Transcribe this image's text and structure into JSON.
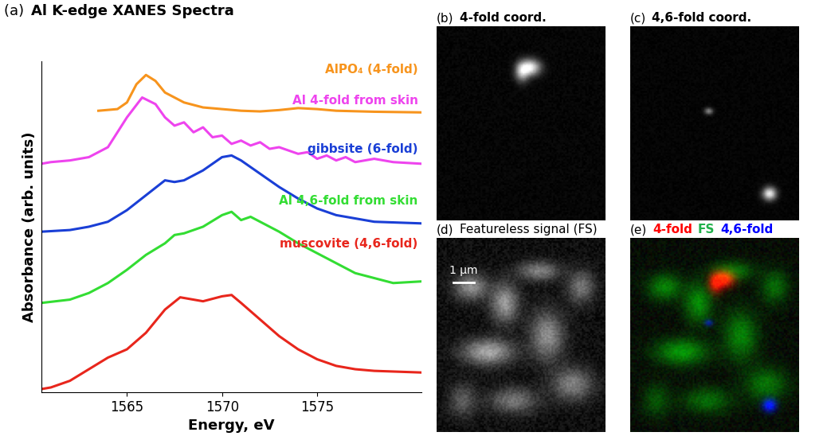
{
  "chart_data": {
    "type": "line",
    "label": "(a)",
    "title": "Al K-edge XANES Spectra",
    "x_label": "Energy, eV",
    "y_label": "Absorbance (arb. units)",
    "xlim": [
      1560.5,
      1580.5
    ],
    "ylim": [
      0,
      10
    ],
    "xticks": [
      1565,
      1570,
      1575
    ],
    "tick_labels": "x",
    "series": [
      {
        "name": "AlPO₄ (4-fold)",
        "color": "#f7941d",
        "x": [
          1563.5,
          1564.5,
          1565,
          1565.5,
          1566,
          1566.5,
          1567,
          1567.5,
          1568,
          1569,
          1570,
          1571,
          1572,
          1573,
          1574,
          1575,
          1576,
          1578,
          1580.5
        ],
        "values": [
          8.5,
          8.55,
          8.75,
          9.3,
          9.58,
          9.4,
          9.05,
          8.9,
          8.75,
          8.6,
          8.55,
          8.5,
          8.48,
          8.52,
          8.58,
          8.55,
          8.5,
          8.47,
          8.45
        ]
      },
      {
        "name": "Al 4-fold from skin",
        "color": "#ee44ee",
        "x": [
          1560.5,
          1561,
          1562,
          1563,
          1564,
          1565,
          1565.8,
          1566.5,
          1567,
          1567.5,
          1568,
          1568.5,
          1569,
          1569.5,
          1570,
          1570.5,
          1571,
          1571.5,
          1572,
          1572.5,
          1573,
          1574,
          1574.5,
          1575,
          1575.5,
          1576,
          1576.5,
          1577,
          1578,
          1579,
          1580.5
        ],
        "values": [
          6.9,
          6.95,
          7.0,
          7.1,
          7.4,
          8.3,
          8.9,
          8.7,
          8.3,
          8.05,
          8.15,
          7.85,
          8.0,
          7.7,
          7.75,
          7.5,
          7.6,
          7.45,
          7.55,
          7.35,
          7.4,
          7.2,
          7.25,
          7.05,
          7.15,
          7.0,
          7.1,
          6.95,
          7.05,
          6.95,
          6.9
        ]
      },
      {
        "name": "gibbsite (6-fold)",
        "color": "#1a3fd6",
        "x": [
          1560.5,
          1562,
          1563,
          1564,
          1565,
          1566,
          1567,
          1567.5,
          1568,
          1569,
          1570,
          1570.5,
          1571,
          1572,
          1573,
          1574,
          1575,
          1576,
          1577,
          1578,
          1580.5
        ],
        "values": [
          4.85,
          4.9,
          5.0,
          5.15,
          5.5,
          5.95,
          6.4,
          6.35,
          6.4,
          6.7,
          7.1,
          7.15,
          7.0,
          6.6,
          6.2,
          5.85,
          5.55,
          5.35,
          5.25,
          5.15,
          5.1
        ]
      },
      {
        "name": "Al 4,6-fold from skin",
        "color": "#33dd33",
        "x": [
          1560.5,
          1562,
          1563,
          1564,
          1565,
          1566,
          1567,
          1567.5,
          1568,
          1569,
          1570,
          1570.5,
          1571,
          1571.5,
          1572,
          1573,
          1574,
          1575,
          1576,
          1577,
          1578,
          1579,
          1580.5
        ],
        "values": [
          2.7,
          2.8,
          3.0,
          3.3,
          3.7,
          4.15,
          4.5,
          4.75,
          4.8,
          5.0,
          5.35,
          5.45,
          5.2,
          5.3,
          5.15,
          4.85,
          4.5,
          4.2,
          3.9,
          3.6,
          3.45,
          3.3,
          3.35
        ]
      },
      {
        "name": "muscovite (4,6-fold)",
        "color": "#e8261c",
        "x": [
          1560.5,
          1561,
          1562,
          1563,
          1564,
          1565,
          1566,
          1567,
          1567.8,
          1568.5,
          1569,
          1570,
          1570.5,
          1571,
          1572,
          1573,
          1574,
          1575,
          1576,
          1577,
          1578,
          1580.5
        ],
        "values": [
          0.1,
          0.15,
          0.35,
          0.7,
          1.05,
          1.3,
          1.8,
          2.5,
          2.87,
          2.8,
          2.75,
          2.9,
          2.94,
          2.7,
          2.2,
          1.7,
          1.3,
          1.0,
          0.8,
          0.7,
          0.65,
          0.6
        ]
      }
    ]
  },
  "panels": [
    {
      "label": "(b)",
      "title": "4-fold coord."
    },
    {
      "label": "(c)",
      "title": "4,6-fold coord."
    },
    {
      "label": "(d)",
      "title": "Featureless signal (FS)",
      "scale_bar": "1 µm"
    },
    {
      "label": "(e)",
      "title_parts": [
        {
          "text": "4-fold",
          "color": "red"
        },
        {
          "text": "FS",
          "color": "#22b14c"
        },
        {
          "text": "4,6-fold",
          "color": "blue"
        }
      ]
    }
  ]
}
